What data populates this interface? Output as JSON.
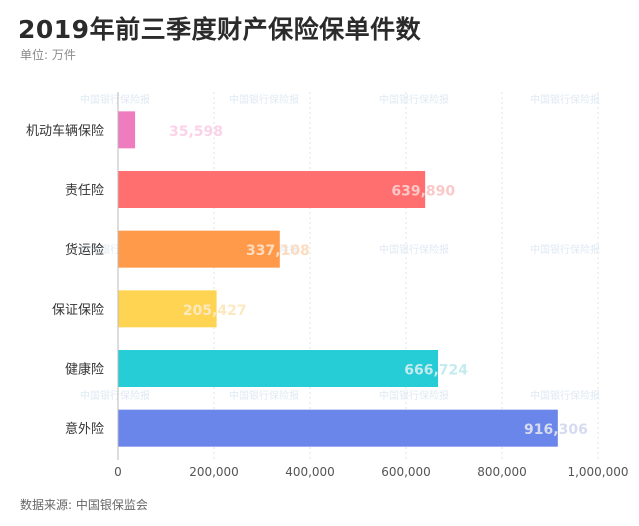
{
  "title": "2019年前三季度财产保险保单件数",
  "subtitle": "单位: 万件",
  "source": "数据来源: 中国银保监会",
  "watermark": "中国银行保险报",
  "chart_data": {
    "type": "bar",
    "orientation": "horizontal",
    "categories": [
      "机动车辆保险",
      "责任险",
      "货运险",
      "保证保险",
      "健康险",
      "意外险"
    ],
    "values": [
      35598,
      639890,
      337108,
      205427,
      666724,
      916306
    ],
    "value_labels": [
      "35,598",
      "639,890",
      "337,108",
      "205,427",
      "666,724",
      "916,306"
    ],
    "colors": [
      "#f07cc0",
      "#ff6f6f",
      "#ff9a4a",
      "#ffd452",
      "#26ccd6",
      "#6b86ea"
    ],
    "label_colors": [
      "#fad3e8",
      "#fbc8c8",
      "#fddcbf",
      "#fde9c0",
      "#c4ebef",
      "#d6dcef"
    ],
    "xlim": [
      0,
      1000000
    ],
    "xticks": [
      0,
      200000,
      400000,
      600000,
      800000,
      1000000
    ],
    "xtick_labels": [
      "0",
      "200,000",
      "400,000",
      "600,000",
      "800,000",
      "1,000,000"
    ],
    "grid": true
  }
}
